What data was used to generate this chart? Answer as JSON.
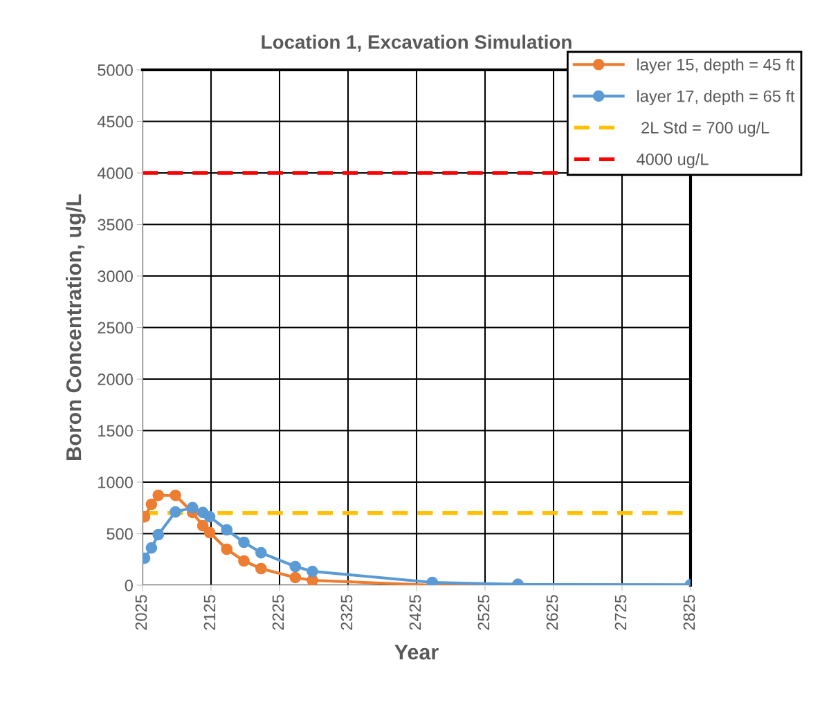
{
  "chart_data": {
    "type": "line",
    "title": "Location 1, Excavation Simulation",
    "xlabel": "Year",
    "ylabel": "Boron Concentration, ug/L",
    "xlim": [
      2025,
      2825
    ],
    "xticks": [
      2025,
      2125,
      2225,
      2325,
      2425,
      2525,
      2625,
      2725,
      2825
    ],
    "ylim": [
      0,
      5000
    ],
    "yticks": [
      0,
      500,
      1000,
      1500,
      2000,
      2500,
      3000,
      3500,
      4000,
      4500,
      5000
    ],
    "grid": true,
    "legend": "top right",
    "marker": "circle",
    "line_style": "solid",
    "series": [
      {
        "name": "layer 15, depth = 45 ft",
        "color": "#ed7d31",
        "x": [
          2028,
          2038,
          2048,
          2073,
          2098,
          2113,
          2123,
          2148,
          2173,
          2198,
          2248,
          2273,
          2448,
          2573,
          2825
        ],
        "values": [
          664,
          785,
          872,
          872,
          705,
          577,
          510,
          349,
          235,
          161,
          74,
          47,
          0,
          7,
          0
        ]
      },
      {
        "name": "layer 17, depth = 65 ft",
        "color": "#5b9bd5",
        "x": [
          2028,
          2038,
          2048,
          2073,
          2098,
          2113,
          2123,
          2148,
          2173,
          2198,
          2248,
          2273,
          2448,
          2573,
          2825
        ],
        "values": [
          262,
          362,
          490,
          711,
          752,
          705,
          664,
          537,
          416,
          315,
          181,
          134,
          27,
          7,
          5
        ]
      }
    ],
    "ref_lines": [
      {
        "axis": "y",
        "value": 700,
        "label": " 2L Std = 700 ug/L",
        "color": "#ffc000",
        "line_style": "dashed"
      },
      {
        "axis": "y",
        "value": 4000,
        "label": "4000 ug/L",
        "color": "#ff0000",
        "line_style": "dashed"
      }
    ]
  }
}
